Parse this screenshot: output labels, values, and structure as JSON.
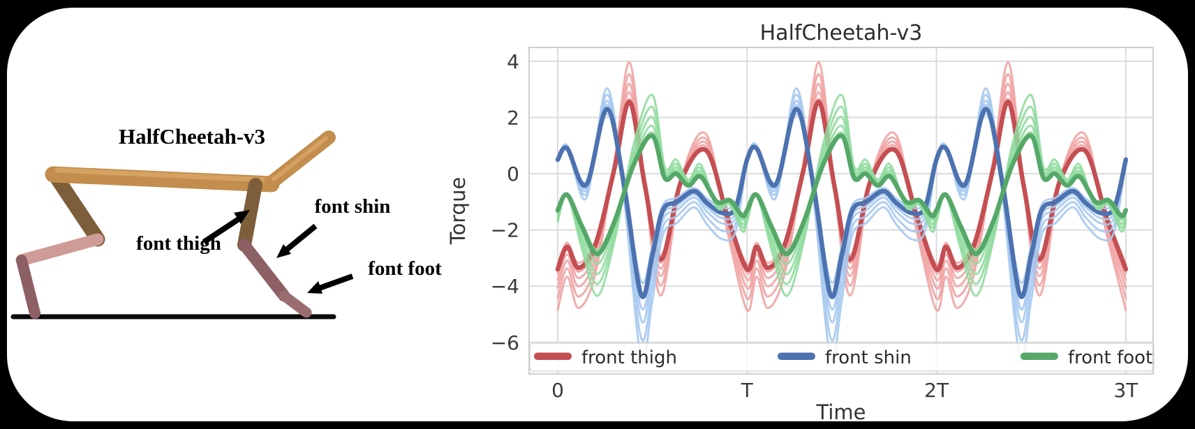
{
  "page": {
    "background": "#000000",
    "card_background": "#ffffff"
  },
  "panel_left": {
    "title": "HalfCheetah-v3",
    "labels": {
      "thigh": "font thigh",
      "shin": "font shin",
      "foot": "font foot"
    },
    "colors": {
      "torso": "#c28d4d",
      "torso_highlight": "#dcaa69",
      "thigh": "#7d5e3a",
      "back_shin": "#cf9b96",
      "dark_limb": "#8d6065",
      "front_foot": "#9a6d70",
      "ground": "#0a0a0a",
      "label": "#000000"
    }
  },
  "chart_data": {
    "type": "line",
    "title": "HalfCheetah-v3",
    "xlabel": "Time",
    "ylabel": "Torque",
    "x_unit": "period T",
    "periods": 3,
    "xlim_t": [
      0,
      3
    ],
    "ylim": [
      -7.15,
      4.5
    ],
    "grid": true,
    "xticks": [
      {
        "t": 0,
        "label": "0"
      },
      {
        "t": 1,
        "label": "T"
      },
      {
        "t": 2,
        "label": "2T"
      },
      {
        "t": 3,
        "label": "3T"
      }
    ],
    "yticks": [
      {
        "v": 4,
        "label": "4"
      },
      {
        "v": 2,
        "label": "2"
      },
      {
        "v": 0,
        "label": "0"
      },
      {
        "v": -2,
        "label": "−2"
      },
      {
        "v": -4,
        "label": "−4"
      },
      {
        "v": -6,
        "label": "−6"
      }
    ],
    "legend": {
      "position": "lower center",
      "columns": 3
    },
    "series": [
      {
        "name": "front thigh",
        "color": "#c44e52",
        "light_color": "#f1a3a3",
        "keypoints_t_value_one_period": [
          [
            0,
            -3.4
          ],
          [
            0.05,
            -2.6
          ],
          [
            0.11,
            -3.35
          ],
          [
            0.2,
            -2.5
          ],
          [
            0.3,
            0.2
          ],
          [
            0.38,
            2.55
          ],
          [
            0.46,
            -0.4
          ],
          [
            0.545,
            -3.05
          ],
          [
            0.655,
            -0.2
          ],
          [
            0.785,
            0.82
          ],
          [
            0.9,
            -1.6
          ],
          [
            1,
            -3.4
          ]
        ],
        "variant_scale_offset": [
          [
            1.48,
            0.18
          ],
          [
            1.34,
            0.12
          ],
          [
            1.22,
            0.08
          ],
          [
            1.12,
            0.04
          ],
          [
            1.04,
            0.0
          ],
          [
            0.96,
            0.04
          ]
        ]
      },
      {
        "name": "front shin",
        "color": "#4c72b0",
        "light_color": "#a6c9f0",
        "keypoints_t_value_one_period": [
          [
            0,
            0.5
          ],
          [
            0.05,
            0.9
          ],
          [
            0.15,
            -0.4
          ],
          [
            0.26,
            2.3
          ],
          [
            0.35,
            -0.4
          ],
          [
            0.44,
            -4.3
          ],
          [
            0.5,
            -2.9
          ],
          [
            0.555,
            -1.3
          ],
          [
            0.63,
            -1.0
          ],
          [
            0.72,
            -0.62
          ],
          [
            0.79,
            -1.05
          ],
          [
            0.87,
            -1.4
          ],
          [
            0.94,
            -1.2
          ],
          [
            1,
            0.5
          ]
        ],
        "variant_scale_offset": [
          [
            1.45,
            -0.3
          ],
          [
            1.31,
            -0.2
          ],
          [
            1.18,
            -0.12
          ],
          [
            1.09,
            -0.06
          ],
          [
            0.98,
            0.0
          ],
          [
            0.9,
            0.05
          ]
        ]
      },
      {
        "name": "front foot",
        "color": "#55a868",
        "light_color": "#90dc9f",
        "keypoints_t_value_one_period": [
          [
            0,
            -1.3
          ],
          [
            0.05,
            -0.75
          ],
          [
            0.13,
            -1.9
          ],
          [
            0.21,
            -2.85
          ],
          [
            0.3,
            -1.7
          ],
          [
            0.4,
            0.3
          ],
          [
            0.5,
            1.35
          ],
          [
            0.565,
            -0.15
          ],
          [
            0.625,
            0.0
          ],
          [
            0.69,
            -0.42
          ],
          [
            0.755,
            -0.1
          ],
          [
            0.84,
            -1.0
          ],
          [
            0.91,
            -0.95
          ],
          [
            0.975,
            -1.5
          ],
          [
            1,
            -1.3
          ]
        ],
        "variant_scale_offset": [
          [
            1.7,
            0.5
          ],
          [
            1.5,
            0.35
          ],
          [
            1.33,
            0.22
          ],
          [
            1.17,
            0.12
          ],
          [
            1.05,
            0.05
          ],
          [
            0.95,
            0.0
          ]
        ]
      }
    ]
  }
}
